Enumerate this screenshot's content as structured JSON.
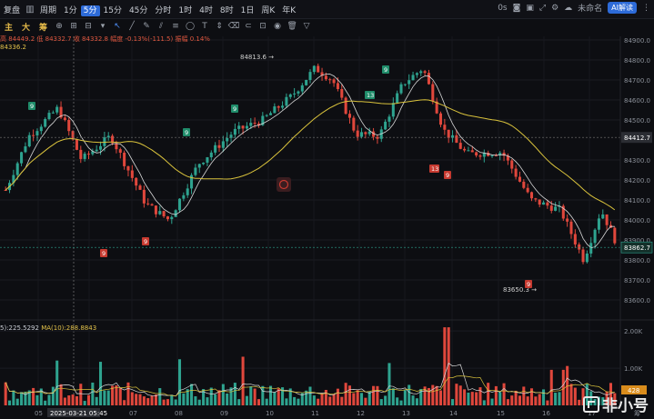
{
  "toolbar": {
    "left_label": "复盘",
    "chart_type_icon": "candle-chart-icon",
    "period_label": "周期",
    "periods": [
      "1分",
      "5分",
      "15分",
      "45分",
      "分时",
      "1时",
      "4时",
      "8时",
      "1日",
      "周K",
      "年K"
    ],
    "active_period": "5分",
    "right": {
      "zero_label": "0s",
      "unnamed_label": "未命名",
      "ai_label": "AI解读"
    }
  },
  "drawtools": {
    "labels": [
      "主",
      "大",
      "筹"
    ]
  },
  "info": {
    "high_text": "高 84449.2",
    "low_text": "低 84332.7",
    "close_text": "收 84332.8",
    "change_text": "幅度 -0.13%(-111.5)",
    "amp_text": "振幅 0.14%",
    "ma_value": "84336.2"
  },
  "volume_info": {
    "v1": "5):225.5292",
    "ma10": "MA(10):288.8843"
  },
  "price_axis": {
    "ticks": [
      {
        "v": 84900,
        "label": "84900.0"
      },
      {
        "v": 84800,
        "label": "84800.0"
      },
      {
        "v": 84700,
        "label": "84700.0"
      },
      {
        "v": 84600,
        "label": "84600.0"
      },
      {
        "v": 84500,
        "label": "84500.0"
      },
      {
        "v": 84300,
        "label": "84300.0"
      },
      {
        "v": 84200,
        "label": "84200.0"
      },
      {
        "v": 84100,
        "label": "84100.0"
      },
      {
        "v": 84000,
        "label": "84000.0"
      },
      {
        "v": 83900,
        "label": "83900.0"
      },
      {
        "v": 83800,
        "label": "83800.0"
      },
      {
        "v": 83700,
        "label": "83700.0"
      },
      {
        "v": 83600,
        "label": "83600.0"
      }
    ],
    "crosshair_label": "84412.7",
    "current_label": "83862.7"
  },
  "volume_axis": {
    "ticks": [
      {
        "v": 2000,
        "label": "2.00K"
      },
      {
        "v": 1000,
        "label": "1.00K"
      }
    ],
    "current_label": "428"
  },
  "time_axis": {
    "labels": [
      "05",
      "07",
      "08",
      "09",
      "10",
      "11",
      "12",
      "13",
      "14",
      "15",
      "16",
      "17"
    ],
    "crosshair_label": "2025-03-21 05:45",
    "right_label": "筹"
  },
  "annotations": {
    "high_label": "84813.6",
    "low_label": "83650.3",
    "td_markers": [
      "9",
      "9",
      "9",
      "13",
      "9",
      "9",
      "9",
      "13",
      "9",
      "9"
    ]
  },
  "watermark": "非小号",
  "colors": {
    "up": "#2ea38f",
    "down": "#e0473c",
    "ma_yellow": "#d9c23c",
    "ma_white": "#d8d8d8",
    "accent": "#2d6bd8"
  },
  "chart_data": {
    "type": "candlestick",
    "ohlc_sample": {
      "high": 84449.2,
      "low": 84332.7,
      "close": 84332.8
    },
    "range": {
      "ylim": [
        83600,
        84900
      ]
    },
    "extremes": {
      "high": 84813.6,
      "low": 83650.3
    },
    "current_price": 83862.7,
    "crosshair_price": 84412.7
  }
}
